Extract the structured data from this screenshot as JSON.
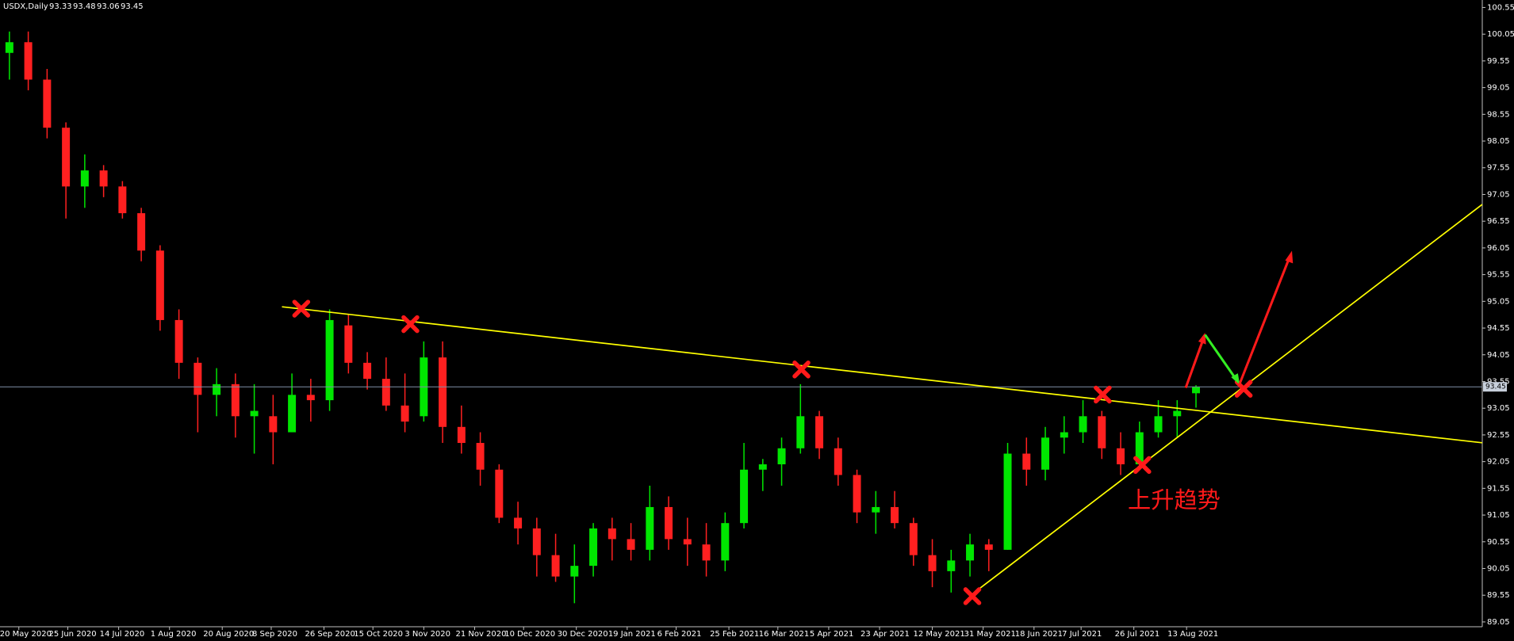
{
  "chart_data": {
    "type": "candlestick",
    "title": "USDX,Daily",
    "annotation": "上升趋势",
    "up_color": "#00e600",
    "down_color": "#ff2020",
    "grid": false,
    "xlim": [
      0,
      78.7
    ],
    "xticks": [
      {
        "value": 1.0,
        "label": "20 May 2020"
      },
      {
        "value": 3.6,
        "label": "25 Jun 2020"
      },
      {
        "value": 6.3,
        "label": "14 Jul 2020"
      },
      {
        "value": 9.0,
        "label": "1 Aug 2020"
      },
      {
        "value": 11.8,
        "label": "20 Aug 2020"
      },
      {
        "value": 14.4,
        "label": "8 Sep 2020"
      },
      {
        "value": 17.2,
        "label": "26 Sep 2020"
      },
      {
        "value": 19.8,
        "label": "15 Oct 2020"
      },
      {
        "value": 22.5,
        "label": "3 Nov 2020"
      },
      {
        "value": 25.2,
        "label": "21 Nov 2020"
      },
      {
        "value": 27.8,
        "label": "10 Dec 2020"
      },
      {
        "value": 30.6,
        "label": "30 Dec 2020"
      },
      {
        "value": 33.3,
        "label": "19 Jan 2021"
      },
      {
        "value": 35.9,
        "label": "6 Feb 2021"
      },
      {
        "value": 38.7,
        "label": "25 Feb 2021"
      },
      {
        "value": 41.3,
        "label": "16 Mar 2021"
      },
      {
        "value": 44.0,
        "label": "5 Apr 2021"
      },
      {
        "value": 46.7,
        "label": "23 Apr 2021"
      },
      {
        "value": 49.5,
        "label": "12 May 2021"
      },
      {
        "value": 52.2,
        "label": "31 May 2021"
      },
      {
        "value": 54.9,
        "label": "18 Jun 2021"
      },
      {
        "value": 57.4,
        "label": "7 Jul 2021"
      },
      {
        "value": 60.2,
        "label": "26 Jul 2021"
      },
      {
        "value": 63.0,
        "label": "13 Aug 2021"
      }
    ],
    "ylim": [
      88.96,
      100.69
    ],
    "yticks": [
      89.05,
      89.55,
      90.05,
      90.55,
      91.05,
      91.55,
      92.05,
      92.55,
      93.05,
      93.55,
      94.05,
      94.55,
      95.05,
      95.55,
      96.05,
      96.55,
      97.05,
      97.55,
      98.05,
      98.55,
      99.05,
      99.55,
      100.05,
      100.55
    ],
    "candles": [
      [
        99.7,
        100.1,
        99.2,
        99.9
      ],
      [
        99.9,
        100.1,
        99.0,
        99.2
      ],
      [
        99.2,
        99.4,
        98.1,
        98.3
      ],
      [
        98.3,
        98.4,
        96.6,
        97.2
      ],
      [
        97.2,
        97.8,
        96.8,
        97.5
      ],
      [
        97.5,
        97.6,
        97.0,
        97.2
      ],
      [
        97.2,
        97.3,
        96.6,
        96.7
      ],
      [
        96.7,
        96.8,
        95.8,
        96.0
      ],
      [
        96.0,
        96.1,
        94.5,
        94.7
      ],
      [
        94.7,
        94.9,
        93.6,
        93.9
      ],
      [
        93.9,
        94.0,
        92.6,
        93.3
      ],
      [
        93.3,
        93.8,
        92.9,
        93.5
      ],
      [
        93.5,
        93.7,
        92.5,
        92.9
      ],
      [
        92.9,
        93.5,
        92.2,
        93.0
      ],
      [
        92.9,
        93.3,
        92.0,
        92.6
      ],
      [
        92.6,
        93.7,
        92.6,
        93.3
      ],
      [
        93.3,
        93.6,
        92.8,
        93.2
      ],
      [
        93.2,
        94.9,
        93.0,
        94.7
      ],
      [
        94.6,
        94.8,
        93.7,
        93.9
      ],
      [
        93.9,
        94.1,
        93.4,
        93.6
      ],
      [
        93.6,
        94.0,
        93.0,
        93.1
      ],
      [
        93.1,
        93.7,
        92.6,
        92.8
      ],
      [
        92.9,
        94.3,
        92.8,
        94.0
      ],
      [
        94.0,
        94.3,
        92.4,
        92.7
      ],
      [
        92.7,
        93.1,
        92.2,
        92.4
      ],
      [
        92.4,
        92.6,
        91.6,
        91.9
      ],
      [
        91.9,
        92.0,
        90.9,
        91.0
      ],
      [
        91.0,
        91.3,
        90.5,
        90.8
      ],
      [
        90.8,
        91.0,
        89.9,
        90.3
      ],
      [
        90.3,
        90.7,
        89.8,
        89.9
      ],
      [
        89.9,
        90.5,
        89.4,
        90.1
      ],
      [
        90.1,
        90.9,
        89.9,
        90.8
      ],
      [
        90.8,
        91.0,
        90.2,
        90.6
      ],
      [
        90.6,
        90.9,
        90.2,
        90.4
      ],
      [
        90.4,
        91.6,
        90.2,
        91.2
      ],
      [
        91.2,
        91.4,
        90.4,
        90.6
      ],
      [
        90.6,
        91.0,
        90.1,
        90.5
      ],
      [
        90.5,
        90.9,
        89.9,
        90.2
      ],
      [
        90.2,
        91.1,
        90.0,
        90.9
      ],
      [
        90.9,
        92.4,
        90.8,
        91.9
      ],
      [
        91.9,
        92.1,
        91.5,
        92.0
      ],
      [
        92.0,
        92.5,
        91.6,
        92.3
      ],
      [
        92.3,
        93.5,
        92.2,
        92.9
      ],
      [
        92.9,
        93.0,
        92.1,
        92.3
      ],
      [
        92.3,
        92.5,
        91.6,
        91.8
      ],
      [
        91.8,
        91.9,
        90.9,
        91.1
      ],
      [
        91.1,
        91.5,
        90.7,
        91.2
      ],
      [
        91.2,
        91.5,
        90.8,
        90.9
      ],
      [
        90.9,
        91.0,
        90.1,
        90.3
      ],
      [
        90.3,
        90.6,
        89.7,
        90.0
      ],
      [
        90.0,
        90.4,
        89.6,
        90.2
      ],
      [
        90.2,
        90.7,
        89.9,
        90.5
      ],
      [
        90.5,
        90.6,
        90.0,
        90.4
      ],
      [
        90.4,
        92.4,
        90.4,
        92.2
      ],
      [
        92.2,
        92.5,
        91.6,
        91.9
      ],
      [
        91.9,
        92.7,
        91.7,
        92.5
      ],
      [
        92.5,
        92.9,
        92.2,
        92.6
      ],
      [
        92.6,
        93.2,
        92.4,
        92.9
      ],
      [
        92.9,
        93.0,
        92.1,
        92.3
      ],
      [
        92.3,
        92.6,
        91.8,
        92.0
      ],
      [
        92.0,
        92.8,
        91.9,
        92.6
      ],
      [
        92.6,
        93.2,
        92.5,
        92.9
      ],
      [
        92.9,
        93.2,
        92.5,
        93.0
      ],
      [
        93.33,
        93.48,
        93.06,
        93.45
      ]
    ]
  }
}
